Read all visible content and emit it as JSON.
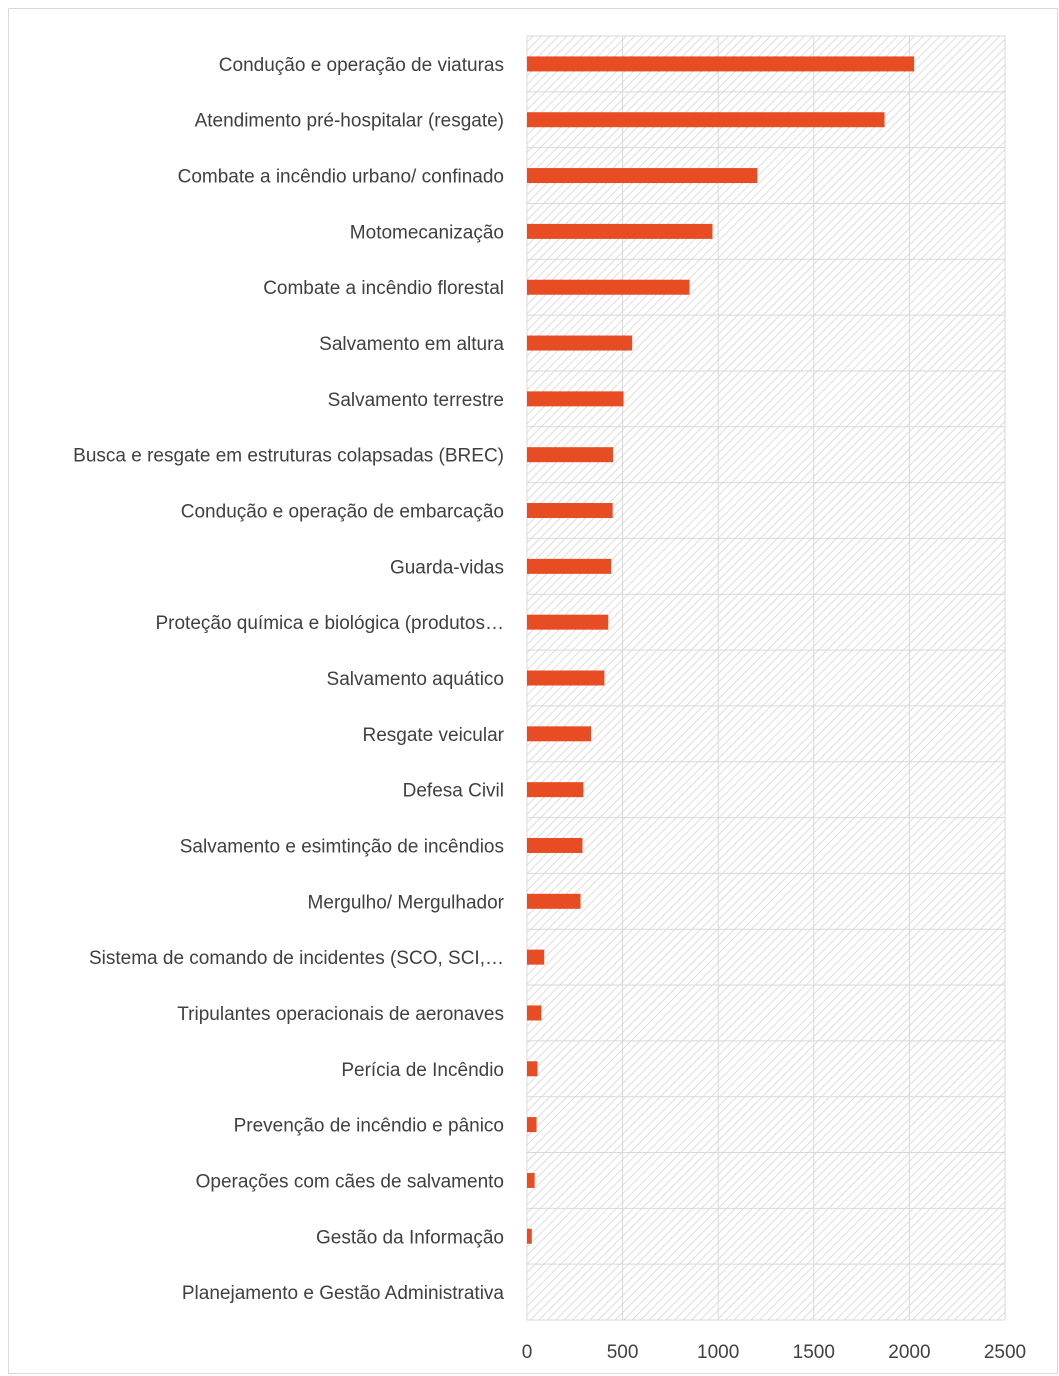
{
  "chart_data": {
    "type": "bar",
    "orientation": "horizontal",
    "title": "",
    "xlabel": "",
    "ylabel": "",
    "xlim": [
      0,
      2500
    ],
    "xticks": [
      0,
      500,
      1000,
      1500,
      2000,
      2500
    ],
    "grid": true,
    "legend": "none",
    "bar_color": "#e84c22",
    "plot_background": "diagonal-hatch-grey",
    "categories": [
      "Condução e operação de viaturas",
      "Atendimento pré-hospitalar (resgate)",
      "Combate a incêndio urbano/ confinado",
      "Motomecanização",
      "Combate a incêndio florestal",
      "Salvamento em altura",
      "Salvamento terrestre",
      "Busca e resgate em estruturas colapsadas (BREC)",
      "Condução e operação de embarcação",
      "Guarda-vidas",
      "Proteção química e biológica (produtos…",
      "Salvamento aquático",
      "Resgate veicular",
      "Defesa Civil",
      "Salvamento e esimtinção de incêndios",
      "Mergulho/ Mergulhador",
      "Sistema de comando de incidentes (SCO, SCI,…",
      "Tripulantes operacionais de aeronaves",
      "Perícia de Incêndio",
      "Prevenção de incêndio e pânico",
      "Operações com cães de salvamento",
      "Gestão da Informação",
      "Planejamento e Gestão Administrativa"
    ],
    "values": [
      2025,
      1870,
      1205,
      970,
      850,
      550,
      505,
      450,
      448,
      440,
      425,
      405,
      335,
      295,
      290,
      280,
      90,
      75,
      55,
      50,
      40,
      25,
      0
    ]
  }
}
